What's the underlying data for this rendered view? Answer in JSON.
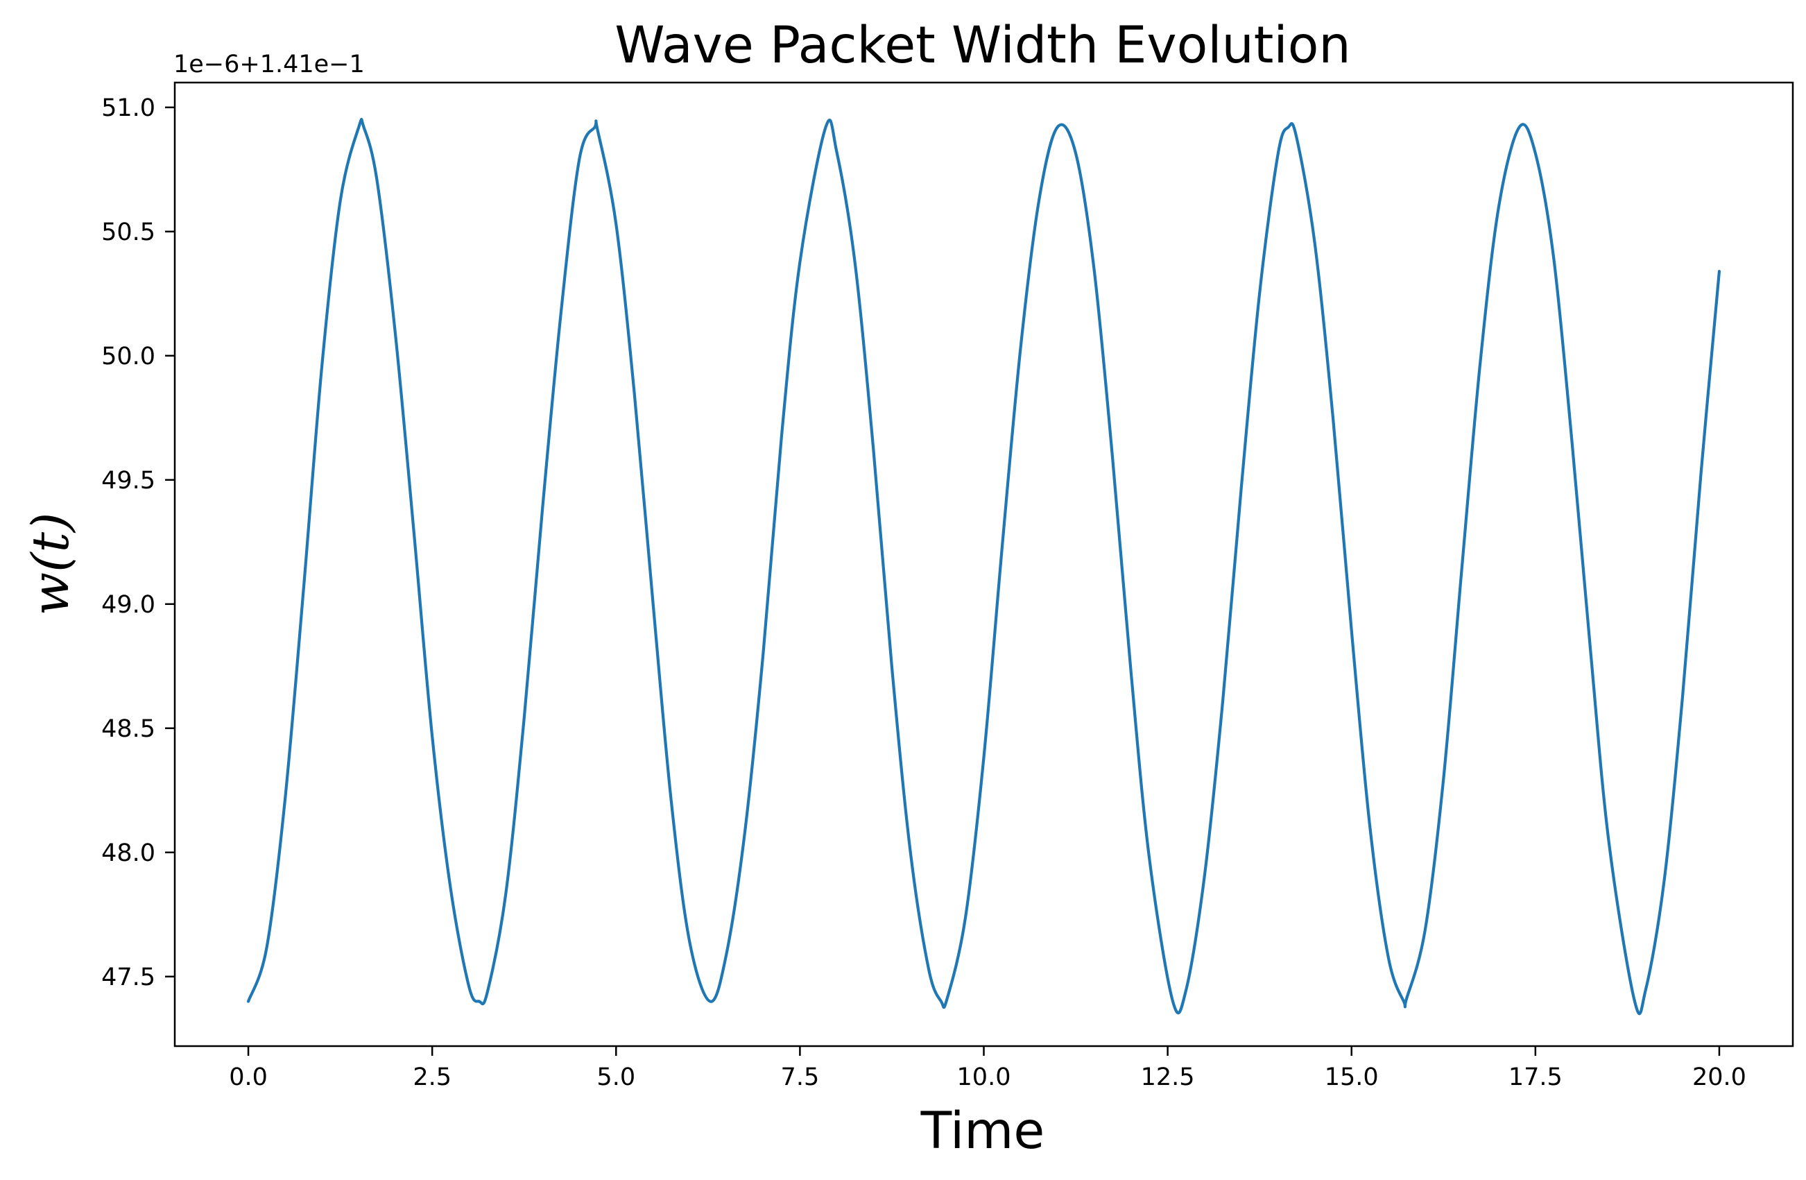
{
  "chart_data": {
    "type": "line",
    "title": "Wave Packet Width Evolution",
    "xlabel": "Time",
    "ylabel": "w(t)",
    "y_offset_label": "1e−6+1.41e−1",
    "xlim": [
      -1.0,
      21.0
    ],
    "ylim": [
      47.22,
      51.1
    ],
    "x_ticks": [
      0.0,
      2.5,
      5.0,
      7.5,
      10.0,
      12.5,
      15.0,
      17.5,
      20.0
    ],
    "x_tick_labels": [
      "0.0",
      "2.5",
      "5.0",
      "7.5",
      "10.0",
      "12.5",
      "15.0",
      "17.5",
      "20.0"
    ],
    "y_ticks": [
      47.5,
      48.0,
      48.5,
      49.0,
      49.5,
      50.0,
      50.5,
      51.0
    ],
    "y_tick_labels": [
      "47.5",
      "48.0",
      "48.5",
      "49.0",
      "49.5",
      "50.0",
      "50.5",
      "51.0"
    ],
    "grid": false,
    "legend": "none",
    "series": [
      {
        "color": "#1f77b4",
        "x": [
          0.0,
          0.25,
          0.5,
          0.75,
          1.0,
          1.25,
          1.5,
          1.57,
          1.75,
          2.0,
          2.25,
          2.5,
          2.75,
          3.0,
          3.14,
          3.25,
          3.5,
          3.75,
          4.0,
          4.25,
          4.5,
          4.71,
          4.75,
          5.0,
          5.25,
          5.5,
          5.75,
          6.0,
          6.28,
          6.5,
          6.75,
          7.0,
          7.25,
          7.5,
          7.85,
          8.0,
          8.25,
          8.5,
          8.75,
          9.0,
          9.25,
          9.42,
          9.5,
          9.75,
          10.0,
          10.25,
          10.5,
          10.75,
          11.0,
          11.25,
          11.5,
          11.75,
          12.0,
          12.25,
          12.57,
          12.75,
          13.0,
          13.25,
          13.5,
          13.75,
          14.0,
          14.14,
          14.25,
          14.5,
          14.75,
          15.0,
          15.25,
          15.5,
          15.71,
          15.75,
          16.0,
          16.25,
          16.5,
          16.75,
          17.0,
          17.28,
          17.5,
          17.75,
          18.0,
          18.25,
          18.5,
          18.85,
          19.0,
          19.25,
          19.5,
          19.75,
          20.0
        ],
        "y": [
          47.4,
          47.617,
          48.215,
          49.057,
          49.957,
          50.623,
          50.919,
          50.92,
          50.705,
          50.085,
          49.294,
          48.468,
          47.855,
          47.46,
          47.4,
          47.437,
          47.832,
          48.54,
          49.386,
          50.17,
          50.79,
          50.92,
          50.907,
          50.53,
          49.845,
          49.012,
          48.207,
          47.64,
          47.4,
          47.59,
          48.079,
          48.8,
          49.675,
          50.377,
          50.92,
          50.821,
          50.37,
          49.62,
          48.746,
          48.007,
          47.531,
          47.4,
          47.41,
          47.737,
          48.383,
          49.232,
          50.031,
          50.625,
          50.92,
          50.815,
          50.347,
          49.59,
          48.731,
          47.978,
          47.4,
          47.446,
          47.903,
          48.612,
          49.465,
          50.252,
          50.812,
          50.92,
          50.882,
          50.453,
          49.743,
          48.893,
          48.103,
          47.578,
          47.4,
          47.413,
          47.687,
          48.295,
          49.145,
          49.973,
          50.597,
          50.92,
          50.815,
          50.39,
          49.644,
          48.81,
          48.039,
          47.4,
          47.448,
          47.884,
          48.625,
          49.522,
          50.34
        ]
      }
    ]
  }
}
